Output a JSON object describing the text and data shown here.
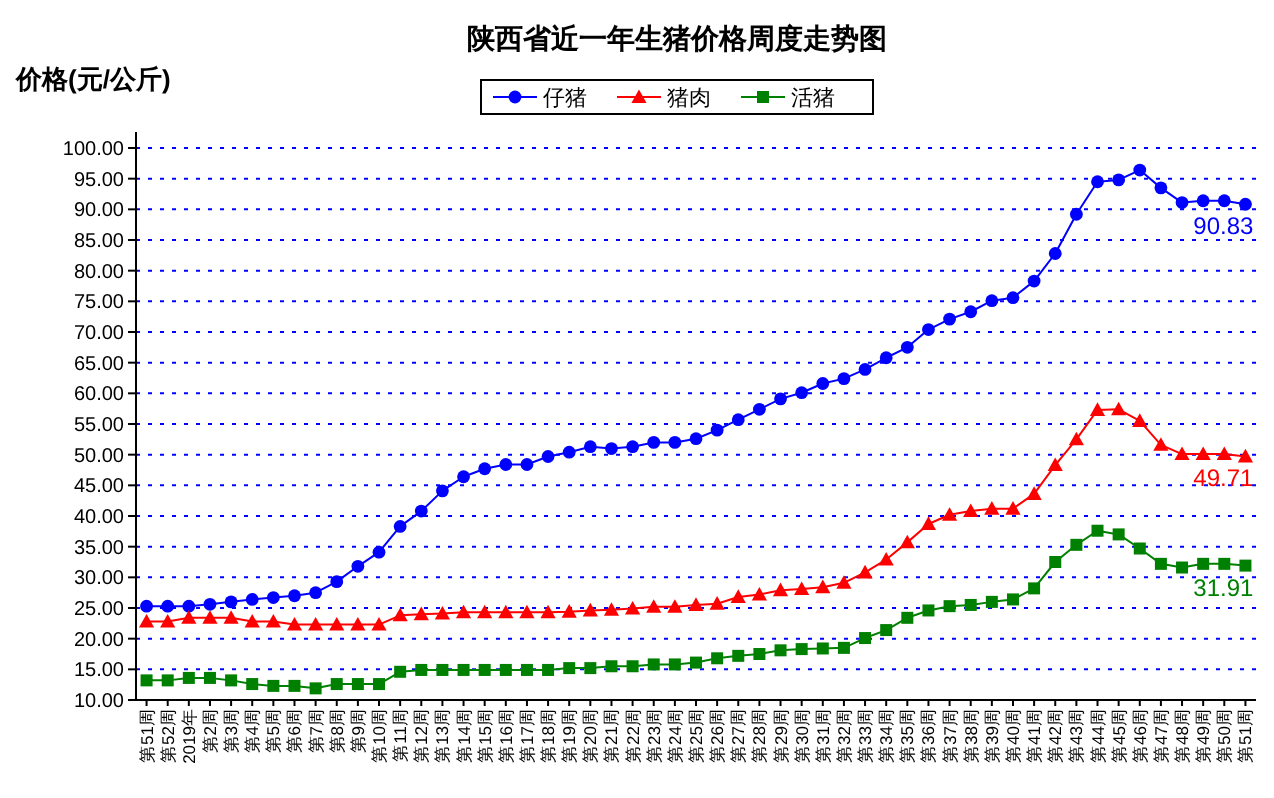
{
  "chart_data": {
    "type": "line",
    "title": "陕西省近一年生猪价格周度走势图",
    "ylabel": "价格(元/公斤)",
    "categories": [
      "第51周",
      "第52周",
      "2019年",
      "第2周",
      "第3周",
      "第4周",
      "第5周",
      "第6周",
      "第7周",
      "第8周",
      "第9周",
      "第10周",
      "第11周",
      "第12周",
      "第13周",
      "第14周",
      "第15周",
      "第16周",
      "第17周",
      "第18周",
      "第19周",
      "第20周",
      "第21周",
      "第22周",
      "第23周",
      "第24周",
      "第25周",
      "第26周",
      "第27周",
      "第28周",
      "第29周",
      "第30周",
      "第31周",
      "第32周",
      "第33周",
      "第34周",
      "第35周",
      "第36周",
      "第37周",
      "第38周",
      "第39周",
      "第40周",
      "第41周",
      "第42周",
      "第43周",
      "第44周",
      "第45周",
      "第46周",
      "第47周",
      "第48周",
      "第49周",
      "第50周",
      "第51周"
    ],
    "series": [
      {
        "name": "仔猪",
        "color": "#0000ff",
        "marker": "circle",
        "values": [
          25.3,
          25.3,
          25.3,
          25.6,
          26.0,
          26.4,
          26.7,
          27.0,
          27.5,
          29.3,
          31.8,
          34.1,
          38.3,
          40.8,
          44.1,
          46.4,
          47.7,
          48.4,
          48.4,
          49.7,
          50.4,
          51.3,
          51.0,
          51.3,
          52.0,
          52.0,
          52.6,
          54.0,
          55.7,
          57.4,
          59.1,
          60.1,
          61.6,
          62.4,
          63.9,
          65.8,
          67.5,
          70.4,
          72.1,
          73.3,
          75.1,
          75.6,
          78.3,
          82.8,
          89.2,
          94.5,
          94.8,
          96.4,
          93.5,
          91.1,
          91.4,
          91.4,
          90.83
        ],
        "value_labels": [
          null,
          null,
          null,
          null,
          null,
          null,
          null,
          null,
          null,
          null,
          null,
          null,
          null,
          null,
          null,
          null,
          null,
          null,
          null,
          null,
          null,
          null,
          null,
          null,
          null,
          null,
          null,
          null,
          null,
          null,
          null,
          null,
          null,
          null,
          null,
          null,
          null,
          null,
          null,
          null,
          null,
          null,
          null,
          null,
          null,
          null,
          null,
          null,
          null,
          null,
          null,
          null,
          "90.83"
        ]
      },
      {
        "name": "猪肉",
        "color": "#ff0000",
        "marker": "triangle",
        "values": [
          22.8,
          22.8,
          23.4,
          23.4,
          23.4,
          22.8,
          22.8,
          22.3,
          22.3,
          22.3,
          22.3,
          22.3,
          23.8,
          24.0,
          24.1,
          24.3,
          24.3,
          24.3,
          24.3,
          24.3,
          24.4,
          24.6,
          24.7,
          24.9,
          25.2,
          25.2,
          25.5,
          25.7,
          26.8,
          27.2,
          27.9,
          28.1,
          28.4,
          29.1,
          30.8,
          32.9,
          35.7,
          38.7,
          40.2,
          40.8,
          41.2,
          41.2,
          43.6,
          48.3,
          52.5,
          57.3,
          57.4,
          55.5,
          51.6,
          50.1,
          50.1,
          50.1,
          49.71
        ],
        "value_labels": [
          null,
          null,
          null,
          null,
          null,
          null,
          null,
          null,
          null,
          null,
          null,
          null,
          null,
          null,
          null,
          null,
          null,
          null,
          null,
          null,
          null,
          null,
          null,
          null,
          null,
          null,
          null,
          null,
          null,
          null,
          null,
          null,
          null,
          null,
          null,
          null,
          null,
          null,
          null,
          null,
          null,
          null,
          null,
          null,
          null,
          null,
          null,
          null,
          null,
          null,
          null,
          null,
          "49.71"
        ]
      },
      {
        "name": "活猪",
        "color": "#008000",
        "marker": "square",
        "values": [
          13.2,
          13.2,
          13.6,
          13.6,
          13.2,
          12.6,
          12.3,
          12.3,
          11.9,
          12.6,
          12.6,
          12.6,
          14.6,
          14.9,
          14.9,
          14.9,
          14.9,
          14.9,
          14.9,
          14.9,
          15.2,
          15.2,
          15.5,
          15.5,
          15.8,
          15.8,
          16.1,
          16.8,
          17.2,
          17.5,
          18.1,
          18.3,
          18.4,
          18.5,
          20.1,
          21.4,
          23.4,
          24.6,
          25.3,
          25.5,
          26.0,
          26.4,
          28.2,
          32.5,
          35.3,
          37.6,
          37.0,
          34.7,
          32.2,
          31.6,
          32.2,
          32.2,
          31.91
        ],
        "value_labels": [
          null,
          null,
          null,
          null,
          null,
          null,
          null,
          null,
          null,
          null,
          null,
          null,
          null,
          null,
          null,
          null,
          null,
          null,
          null,
          null,
          null,
          null,
          null,
          null,
          null,
          null,
          null,
          null,
          null,
          null,
          null,
          null,
          null,
          null,
          null,
          null,
          null,
          null,
          null,
          null,
          null,
          null,
          null,
          null,
          null,
          null,
          null,
          null,
          null,
          null,
          null,
          null,
          "31.91"
        ]
      }
    ],
    "ylim": [
      10,
      100
    ],
    "yticks": [
      {
        "value": 10,
        "label": "10.00"
      },
      {
        "value": 15,
        "label": "15.00"
      },
      {
        "value": 20,
        "label": "20.00"
      },
      {
        "value": 25,
        "label": "25.00"
      },
      {
        "value": 30,
        "label": "30.00"
      },
      {
        "value": 35,
        "label": "35.00"
      },
      {
        "value": 40,
        "label": "40.00"
      },
      {
        "value": 45,
        "label": "45.00"
      },
      {
        "value": 50,
        "label": "50.00"
      },
      {
        "value": 55,
        "label": "55.00"
      },
      {
        "value": 60,
        "label": "60.00"
      },
      {
        "value": 65,
        "label": "65.00"
      },
      {
        "value": 70,
        "label": "70.00"
      },
      {
        "value": 75,
        "label": "75.00"
      },
      {
        "value": 80,
        "label": "80.00"
      },
      {
        "value": 85,
        "label": "85.00"
      },
      {
        "value": 90,
        "label": "90.00"
      },
      {
        "value": 95,
        "label": "95.00"
      },
      {
        "value": 100,
        "label": "100.00"
      }
    ],
    "grid": "y",
    "legend": "top",
    "line_style": "solid"
  }
}
